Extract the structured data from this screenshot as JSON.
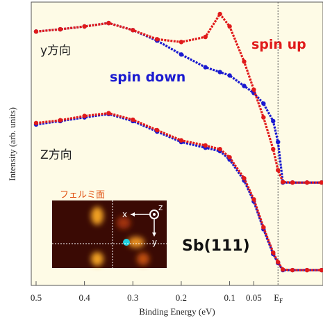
{
  "chart_data": {
    "type": "scatter",
    "xlabel": "Binding Energy (eV)",
    "ylabel": "Intensity (arb. units)",
    "x": [
      0.5,
      0.45,
      0.4,
      0.35,
      0.3,
      0.25,
      0.2,
      0.15,
      0.12,
      0.1,
      0.07,
      0.05,
      0.03,
      0.01,
      0,
      -0.01,
      -0.03,
      -0.06,
      -0.09
    ],
    "xlim": [
      0.51,
      -0.093
    ],
    "xticks": [
      0.5,
      0.4,
      0.3,
      0.2,
      0.1,
      0.05
    ],
    "ylim": [
      0,
      100
    ],
    "ef_label": "E",
    "ef_sub": "F",
    "series": [
      {
        "name": "spin down",
        "color": "#1a1ad0",
        "values": [
          89.6,
          90.4,
          91.4,
          92.6,
          90.1,
          86.4,
          81.5,
          77.0,
          75.3,
          74.1,
          70.4,
          67.9,
          64.2,
          58.0,
          50.6,
          36.3,
          36.3,
          36.3,
          36.3
        ]
      },
      {
        "name": "spin up",
        "color": "#e01a1a",
        "values": [
          89.6,
          90.4,
          91.4,
          92.6,
          90.1,
          86.9,
          85.9,
          87.7,
          95.8,
          91.4,
          79.0,
          69.1,
          59.3,
          48.1,
          40.7,
          36.5,
          36.3,
          36.3,
          36.3
        ]
      },
      {
        "name": "spin down",
        "color": "#1a1ad0",
        "values": [
          56.8,
          58.0,
          59.3,
          60.5,
          58.0,
          54.3,
          50.6,
          48.6,
          47.4,
          44.4,
          37.0,
          29.6,
          19.8,
          11.1,
          7.9,
          5.4,
          5.4,
          5.4,
          5.4
        ]
      },
      {
        "name": "spin up",
        "color": "#e01a1a",
        "values": [
          57.3,
          58.3,
          59.8,
          60.8,
          58.5,
          54.8,
          51.2,
          49.4,
          48.1,
          45.2,
          37.8,
          30.4,
          20.5,
          11.6,
          8.2,
          5.6,
          5.4,
          5.4,
          5.4
        ]
      }
    ],
    "annotations": {
      "y_direction": "y方向",
      "z_direction": "Z方向",
      "spin_down": "spin down",
      "spin_up": "spin up",
      "sample": "Sb(111)",
      "fermi_surface": "フェルミ面",
      "inset_x": "x",
      "inset_y": "y",
      "inset_z": "z"
    }
  }
}
